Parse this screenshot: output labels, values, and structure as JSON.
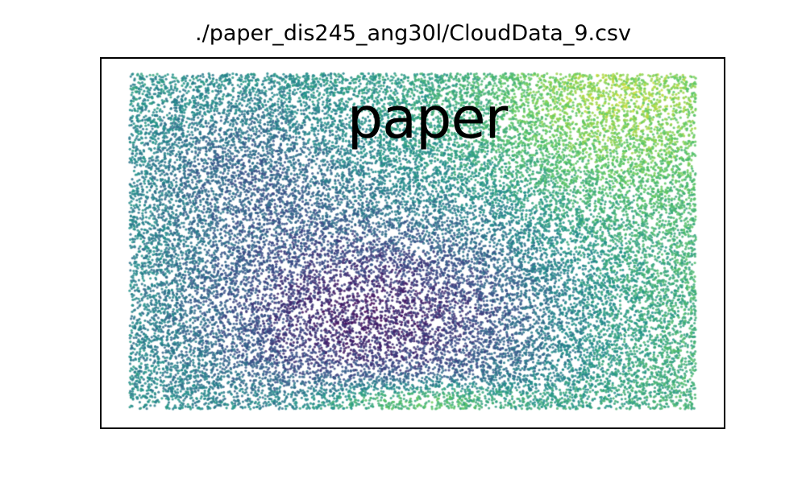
{
  "chart_data": {
    "type": "scatter",
    "title": "./paper_dis245_ang30l/CloudData_9.csv",
    "annotation": "paper",
    "xlabel": "",
    "ylabel": "",
    "axes_ticks": "hidden",
    "grid": false,
    "colormap": "viridis",
    "point_density": "dense, uniform cloud filling the plot area",
    "value_pattern": {
      "low_value_region": "center-left to lower-center (dark purple)",
      "high_value_regions": [
        "top-right (yellow-green)",
        "bottom-center strip (yellow-green)"
      ],
      "background_values": "teal / blue-green elsewhere"
    }
  },
  "colors": {
    "viridis_dark": "#440154",
    "viridis_mid": "#21918c",
    "viridis_light": "#fde725"
  }
}
